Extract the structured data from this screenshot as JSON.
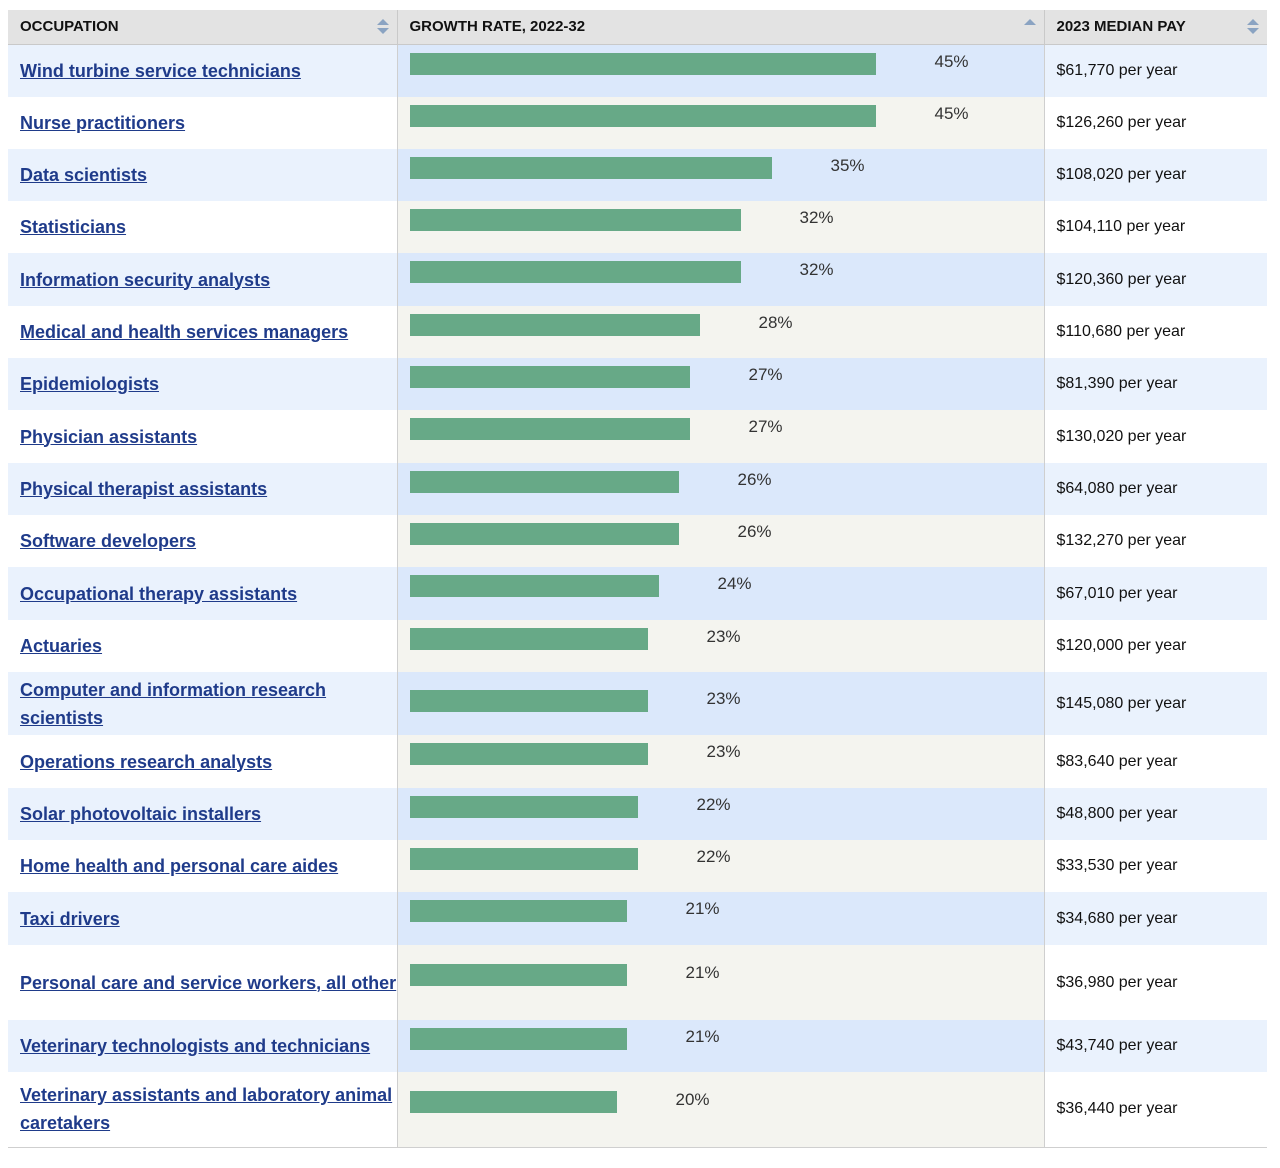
{
  "headers": {
    "occupation": "OCCUPATION",
    "growth": "GROWTH RATE, 2022-32",
    "pay": "2023 MEDIAN PAY"
  },
  "colors": {
    "bar": "#67a987",
    "link": "#1f3b8a",
    "row_alt_bg": "#eaf2fd",
    "growth_bg": "#f4f4ef",
    "growth_alt_bg": "#dbe8fb"
  },
  "icons": {
    "occupation_sort": "sort-both-icon",
    "growth_sort": "sort-ascending-icon",
    "pay_sort": "sort-both-icon"
  },
  "chart_data": {
    "type": "bar",
    "orientation": "horizontal",
    "categories": [
      "Wind turbine service technicians",
      "Nurse practitioners",
      "Data scientists",
      "Statisticians",
      "Information security analysts",
      "Medical and health services managers",
      "Epidemiologists",
      "Physician assistants",
      "Physical therapist assistants",
      "Software developers",
      "Occupational therapy assistants",
      "Actuaries",
      "Computer and information research scientists",
      "Operations research analysts",
      "Solar photovoltaic installers",
      "Home health and personal care aides",
      "Taxi drivers",
      "Personal care and service workers, all other",
      "Veterinary technologists and technicians",
      "Veterinary assistants and laboratory animal caretakers"
    ],
    "values": [
      45,
      45,
      35,
      32,
      32,
      28,
      27,
      27,
      26,
      26,
      24,
      23,
      23,
      23,
      22,
      22,
      21,
      21,
      21,
      20
    ],
    "value_labels": [
      "45%",
      "45%",
      "35%",
      "32%",
      "32%",
      "28%",
      "27%",
      "27%",
      "26%",
      "26%",
      "24%",
      "23%",
      "23%",
      "23%",
      "22%",
      "22%",
      "21%",
      "21%",
      "21%",
      "20%"
    ],
    "pay": [
      "$61,770 per year",
      "$126,260 per year",
      "$108,020 per year",
      "$104,110 per year",
      "$120,360 per year",
      "$110,680 per year",
      "$81,390 per year",
      "$130,020 per year",
      "$64,080 per year",
      "$132,270 per year",
      "$67,010 per year",
      "$120,000 per year",
      "$145,080 per year",
      "$83,640 per year",
      "$48,800 per year",
      "$33,530 per year",
      "$34,680 per year",
      "$36,980 per year",
      "$43,740 per year",
      "$36,440 per year"
    ],
    "title": "",
    "xlabel": "GROWTH RATE, 2022-32",
    "ylabel": "OCCUPATION",
    "xlim": [
      0,
      45
    ],
    "grid": false,
    "legend": "none"
  }
}
